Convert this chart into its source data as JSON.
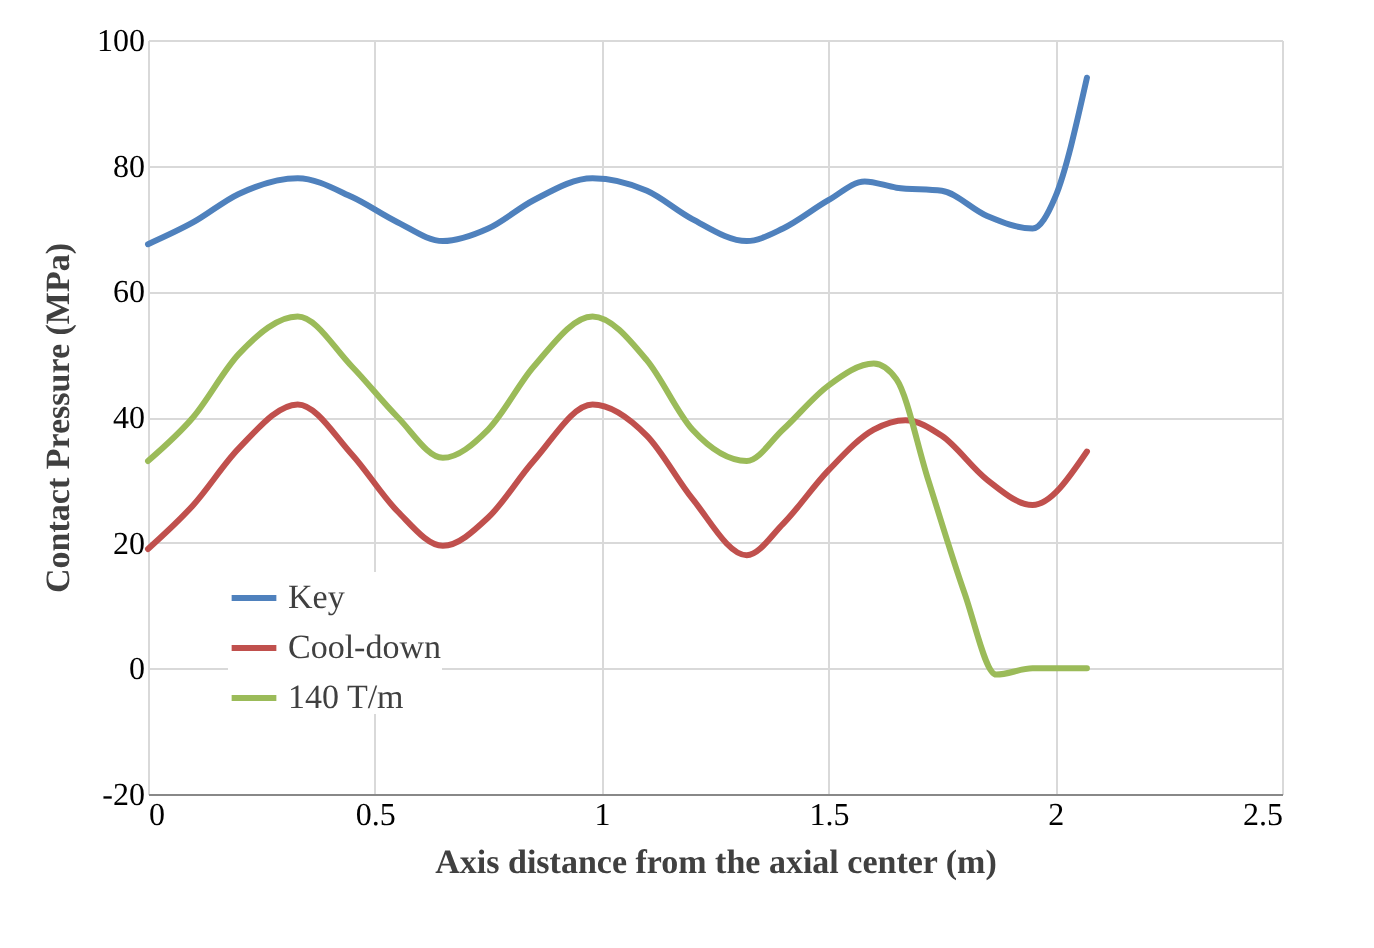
{
  "chart_data": {
    "type": "line",
    "xlabel": "Axis distance from the axial center (m)",
    "ylabel": "Contact Pressure (MPa)",
    "xlim": [
      0,
      2.5
    ],
    "xticks": [
      0,
      0.5,
      1,
      1.5,
      2,
      2.5
    ],
    "ylim": [
      -20,
      100
    ],
    "yticks": [
      -20,
      0,
      20,
      40,
      60,
      80,
      100
    ],
    "grid": true,
    "legend": "bottom left",
    "marker": "none",
    "line_style": "solid",
    "series": [
      {
        "name": "Key",
        "color": "#4f81bd",
        "x": [
          0,
          0.1,
          0.2,
          0.33,
          0.45,
          0.55,
          0.65,
          0.75,
          0.85,
          0.98,
          1.1,
          1.2,
          1.32,
          1.4,
          1.5,
          1.58,
          1.65,
          1.75,
          1.85,
          1.95,
          2.0,
          2.07
        ],
        "values": [
          67.5,
          71,
          75.5,
          78,
          75,
          71,
          68,
          70,
          74.5,
          78,
          76,
          71.5,
          68,
          70,
          74.5,
          77.5,
          76.5,
          76,
          72,
          70,
          75,
          94
        ]
      },
      {
        "name": "Cool-down",
        "color": "#c0504d",
        "x": [
          0,
          0.1,
          0.2,
          0.33,
          0.45,
          0.55,
          0.65,
          0.75,
          0.85,
          0.98,
          1.1,
          1.2,
          1.32,
          1.4,
          1.5,
          1.6,
          1.67,
          1.75,
          1.85,
          1.95,
          2.07
        ],
        "values": [
          19,
          26,
          35,
          42,
          34,
          25,
          19.5,
          24,
          33,
          42,
          37,
          27,
          18,
          23,
          31.5,
          38,
          39.5,
          37,
          30,
          26,
          34.5
        ]
      },
      {
        "name": "140 T/m",
        "color": "#9bbb59",
        "x": [
          0,
          0.1,
          0.2,
          0.33,
          0.45,
          0.55,
          0.65,
          0.75,
          0.85,
          0.98,
          1.1,
          1.2,
          1.32,
          1.4,
          1.5,
          1.6,
          1.65,
          1.72,
          1.8,
          1.87,
          1.95,
          2.07
        ],
        "values": [
          33,
          40,
          50,
          56,
          48,
          40,
          33.5,
          38,
          48,
          56,
          49,
          38,
          33,
          38,
          45,
          48.5,
          46,
          30,
          12,
          -1,
          0,
          0
        ]
      }
    ]
  }
}
